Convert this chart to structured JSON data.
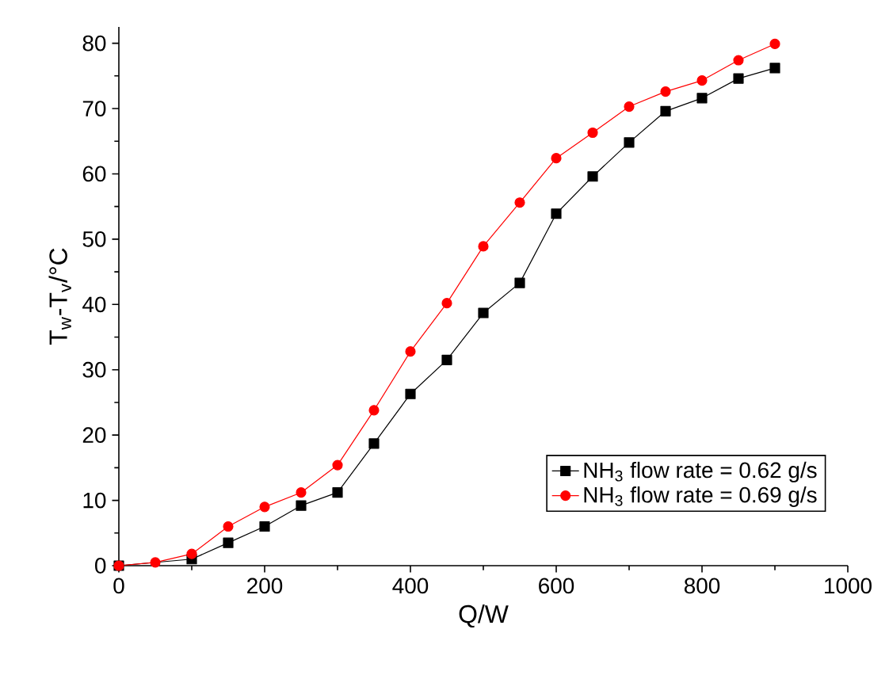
{
  "chart_data": {
    "type": "line",
    "xlabel": "Q/W",
    "ylabel": "T$_{w}$-T$_{v}$/°C",
    "x": [
      0,
      50,
      100,
      150,
      200,
      250,
      300,
      350,
      400,
      450,
      500,
      550,
      600,
      650,
      700,
      750,
      800,
      850,
      900
    ],
    "series": [
      {
        "name": "NH$_{3}$ flow rate = 0.62 g/s",
        "color": "#000000",
        "marker": "square",
        "values": [
          0,
          null,
          1,
          3.5,
          6,
          9.2,
          11.2,
          18.7,
          26.3,
          31.5,
          38.7,
          43.3,
          53.9,
          59.6,
          64.8,
          69.6,
          71.6,
          74.6,
          76.2
        ]
      },
      {
        "name": "NH$_{3}$ flow rate = 0.69 g/s",
        "color": "#ff0000",
        "marker": "circle",
        "values": [
          0,
          0.5,
          1.8,
          6,
          9,
          11.2,
          15.4,
          23.8,
          32.8,
          40.2,
          48.9,
          55.6,
          62.4,
          66.3,
          70.3,
          72.6,
          74.3,
          77.4,
          79.9
        ]
      }
    ],
    "xlim": [
      0,
      1000
    ],
    "ylim": [
      0,
      82.5
    ],
    "xticks": [
      0,
      200,
      400,
      600,
      800,
      1000
    ],
    "yticks": [
      0,
      10,
      20,
      30,
      40,
      50,
      60,
      70,
      80
    ],
    "grid": false,
    "legend": "bottom right",
    "line_style": "solid"
  }
}
